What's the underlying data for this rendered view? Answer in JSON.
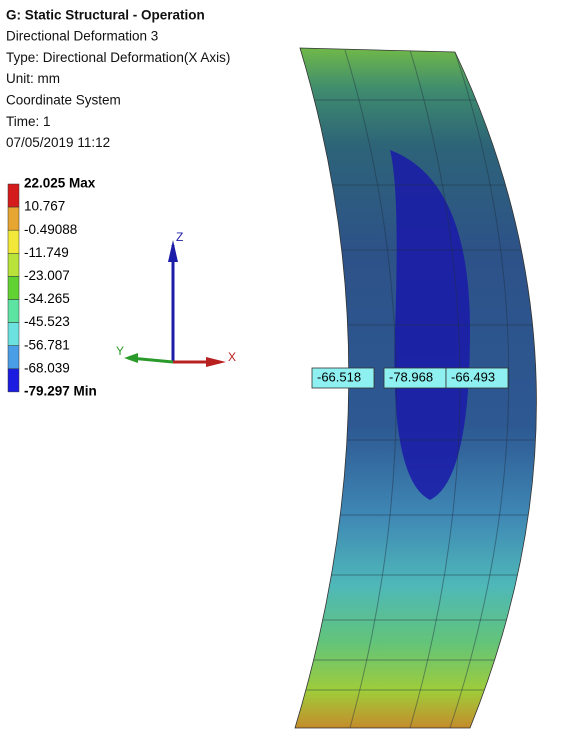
{
  "header": {
    "title": "G: Static Structural - Operation",
    "lines": [
      "Directional Deformation 3",
      "Type: Directional Deformation(X Axis)",
      "Unit: mm",
      "Coordinate System",
      "Time: 1",
      "07/05/2019 11:12"
    ]
  },
  "legend": {
    "labels": [
      "22.025 Max",
      "10.767",
      "-0.49088",
      "-11.749",
      "-23.007",
      "-34.265",
      "-45.523",
      "-56.781",
      "-68.039",
      "-79.297 Min"
    ],
    "colors": [
      "#d51c1c",
      "#e7a531",
      "#f1e83a",
      "#b9e33a",
      "#62d233",
      "#5de3a2",
      "#6ce2e0",
      "#4a9ee6",
      "#1c1ce0"
    ]
  },
  "triad": {
    "z": "Z",
    "x": "X",
    "y": "Y"
  },
  "probes": [
    "-66.518",
    "-78.968",
    "-66.493"
  ]
}
